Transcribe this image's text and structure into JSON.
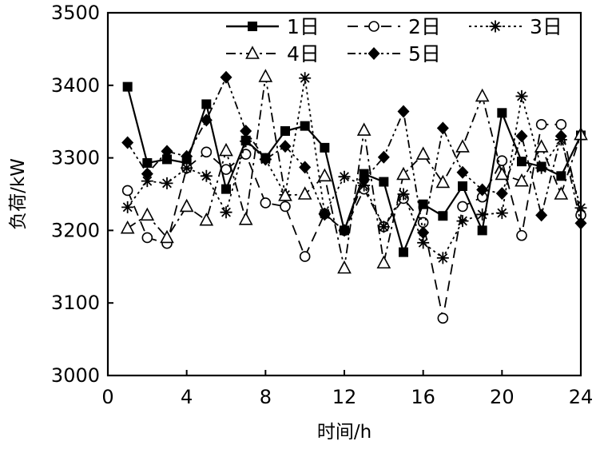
{
  "chart_data": {
    "type": "line",
    "title": "",
    "xlabel": "时间/h",
    "ylabel": "负荷/kW",
    "xlim": [
      0,
      24
    ],
    "ylim": [
      3000,
      3500
    ],
    "xticks": [
      0,
      4,
      8,
      12,
      16,
      20,
      24
    ],
    "yticks": [
      3000,
      3100,
      3200,
      3300,
      3400,
      3500
    ],
    "grid": false,
    "legend_position": "top",
    "x": [
      1,
      2,
      3,
      4,
      5,
      6,
      7,
      8,
      9,
      10,
      11,
      12,
      13,
      14,
      15,
      16,
      17,
      18,
      19,
      20,
      21,
      22,
      23,
      24
    ],
    "series": [
      {
        "name": "1日",
        "marker": "square",
        "dash": "solid",
        "values": [
          3398,
          3293,
          3298,
          3293,
          3374,
          3257,
          3324,
          3300,
          3337,
          3344,
          3314,
          3200,
          3278,
          3267,
          3170,
          3236,
          3220,
          3261,
          3200,
          3362,
          3295,
          3288,
          3275,
          3331
        ]
      },
      {
        "name": "2日",
        "marker": "circle",
        "dash": "dash",
        "values": [
          3255,
          3190,
          3182,
          3286,
          3308,
          3284,
          3305,
          3238,
          3233,
          3164,
          3223,
          3200,
          3257,
          3205,
          3244,
          3211,
          3079,
          3233,
          3246,
          3296,
          3193,
          3346,
          3346,
          3221
        ]
      },
      {
        "name": "3日",
        "marker": "asterisk",
        "dash": "dot",
        "values": [
          3232,
          3268,
          3265,
          3286,
          3275,
          3225,
          3323,
          3298,
          3249,
          3410,
          3223,
          3274,
          3262,
          3205,
          3250,
          3183,
          3162,
          3213,
          3222,
          3224,
          3385,
          3286,
          3325,
          3231
        ]
      },
      {
        "name": "4日",
        "marker": "triangle",
        "dash": "dashdot",
        "values": [
          3203,
          3221,
          3190,
          3233,
          3214,
          3310,
          3215,
          3412,
          3248,
          3250,
          3275,
          3148,
          3338,
          3155,
          3277,
          3305,
          3266,
          3315,
          3385,
          3277,
          3268,
          3315,
          3250,
          3332
        ]
      },
      {
        "name": "5日",
        "marker": "diamond",
        "dash": "dashdotdot",
        "values": [
          3321,
          3278,
          3309,
          3302,
          3352,
          3411,
          3337,
          3298,
          3316,
          3287,
          3222,
          3200,
          3270,
          3301,
          3364,
          3197,
          3341,
          3280,
          3256,
          3251,
          3330,
          3221,
          3330,
          3210
        ]
      }
    ]
  }
}
